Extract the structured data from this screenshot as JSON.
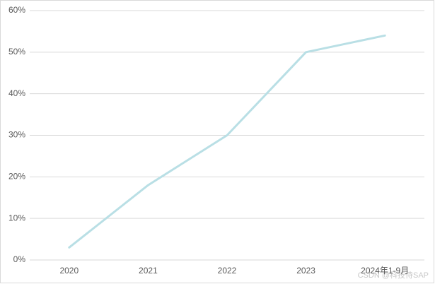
{
  "chart_data": {
    "type": "line",
    "categories": [
      "2020",
      "2021",
      "2022",
      "2023",
      "2024年1-9月"
    ],
    "values": [
      3,
      18,
      30,
      50,
      54
    ],
    "color": "#b9dfe5",
    "ylim": [
      0,
      60
    ],
    "yticks": [
      {
        "value": 0,
        "label": "0%"
      },
      {
        "value": 10,
        "label": "10%"
      },
      {
        "value": 20,
        "label": "20%"
      },
      {
        "value": 30,
        "label": "30%"
      },
      {
        "value": 40,
        "label": "40%"
      },
      {
        "value": 50,
        "label": "50%"
      },
      {
        "value": 60,
        "label": "60%"
      }
    ],
    "grid": true,
    "watermark": "CSDN @科技侍SAP"
  }
}
